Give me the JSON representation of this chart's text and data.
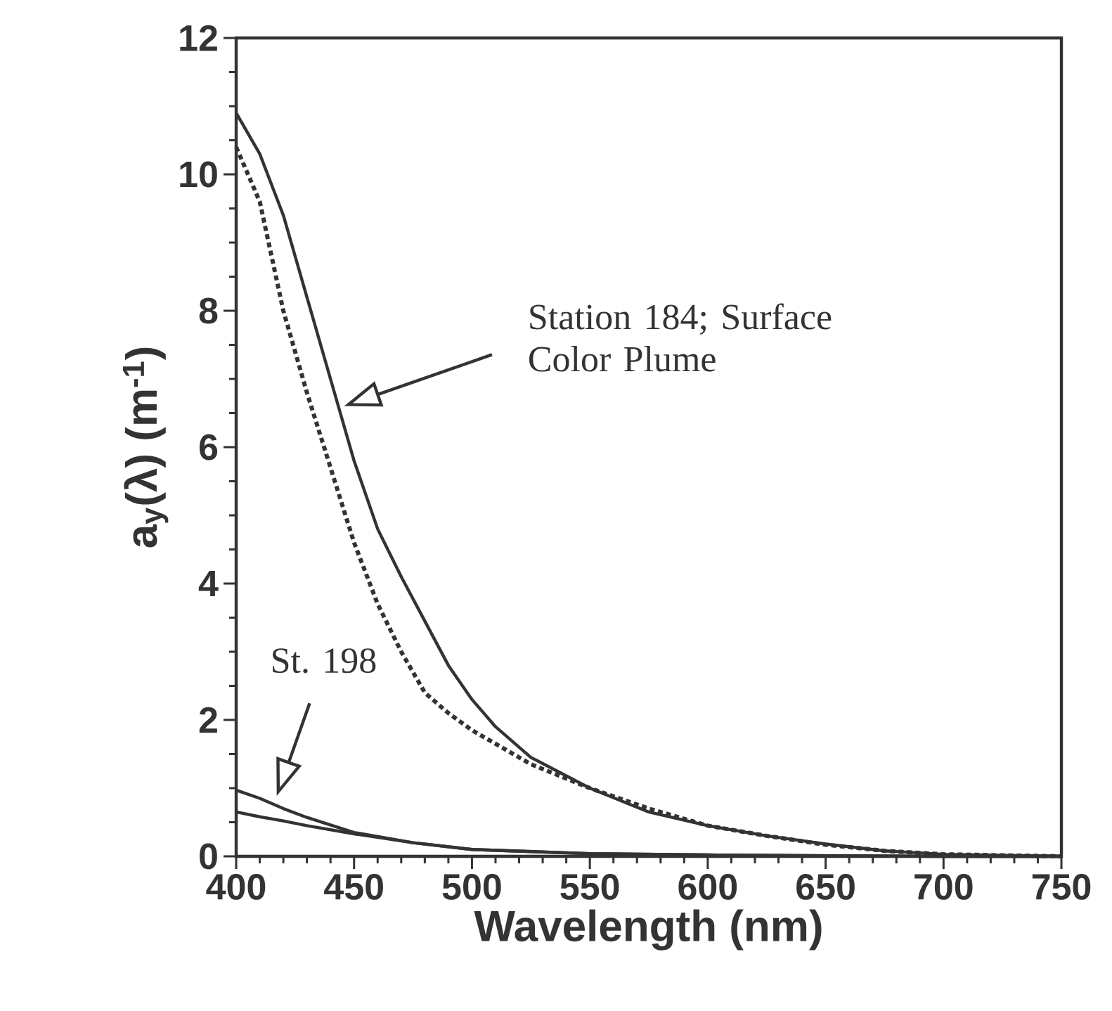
{
  "chart_data": {
    "type": "line",
    "xlabel": "Wavelength (nm)",
    "ylabel": "a$_{y}$(λ) (m$^{-1}$)",
    "xlim": [
      400,
      750
    ],
    "ylim": [
      0,
      12
    ],
    "xticks": [
      400,
      450,
      500,
      550,
      600,
      650,
      700,
      750
    ],
    "yticks": [
      0,
      2,
      4,
      6,
      8,
      10,
      12
    ],
    "grid": false,
    "series": [
      {
        "color": "#333333",
        "line_style": "dotted",
        "x": [
          400,
          410,
          420,
          430,
          440,
          450,
          460,
          470,
          480,
          490,
          500,
          510,
          525,
          550,
          575,
          600,
          625,
          650,
          675,
          700,
          750
        ],
        "values": [
          10.4,
          9.6,
          8.0,
          6.8,
          5.7,
          4.6,
          3.7,
          3.0,
          2.4,
          2.1,
          1.85,
          1.65,
          1.35,
          1.0,
          0.7,
          0.45,
          0.3,
          0.17,
          0.08,
          0.03,
          0
        ]
      },
      {
        "color": "#333333",
        "line_style": "solid",
        "x": [
          400,
          410,
          420,
          430,
          440,
          450,
          460,
          470,
          480,
          490,
          500,
          510,
          525,
          550,
          575,
          600,
          625,
          650,
          675,
          700,
          750
        ],
        "values": [
          10.9,
          10.3,
          9.4,
          8.2,
          7.0,
          5.8,
          4.8,
          4.1,
          3.45,
          2.8,
          2.3,
          1.9,
          1.45,
          1.0,
          0.65,
          0.45,
          0.3,
          0.18,
          0.08,
          0.03,
          0
        ]
      },
      {
        "color": "#333333",
        "line_style": "solid",
        "x": [
          400,
          410,
          420,
          430,
          450,
          475,
          500,
          550,
          600,
          650,
          700,
          750
        ],
        "values": [
          0.97,
          0.85,
          0.7,
          0.57,
          0.35,
          0.2,
          0.1,
          0.04,
          0.02,
          0.01,
          0,
          0
        ]
      },
      {
        "color": "#333333",
        "line_style": "solid",
        "x": [
          400,
          410,
          420,
          430,
          450,
          475,
          500,
          550,
          600,
          650,
          700,
          750
        ],
        "values": [
          0.65,
          0.58,
          0.52,
          0.45,
          0.33,
          0.2,
          0.1,
          0.04,
          0.02,
          0.01,
          0,
          0
        ]
      }
    ],
    "annotations": [
      "Station 184; Surface Color Plume",
      "St. 198"
    ]
  }
}
